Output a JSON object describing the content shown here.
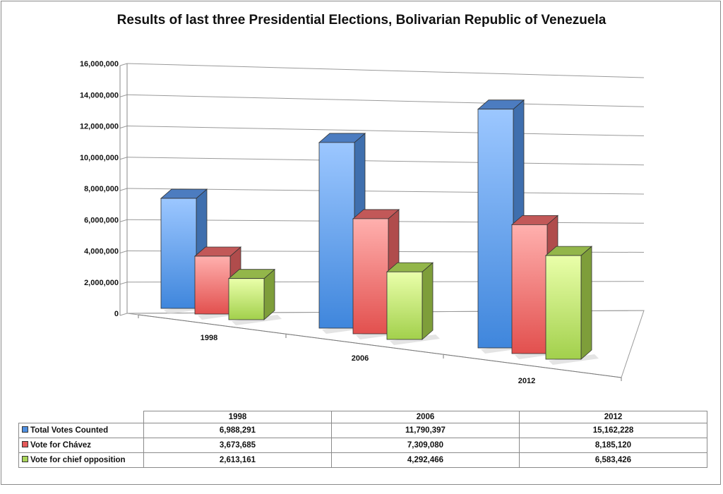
{
  "chart_data": {
    "type": "bar",
    "title": "Results of last three Presidential Elections, Bolivarian Republic of Venezuela",
    "categories": [
      "1998",
      "2006",
      "2012"
    ],
    "series": [
      {
        "name": "Total Votes Counted",
        "values": [
          6988291,
          11790397,
          15162228
        ],
        "color": "#4f8fe0"
      },
      {
        "name": "Vote for Chávez",
        "values": [
          3673685,
          7309080,
          8185120
        ],
        "color": "#e45a5a"
      },
      {
        "name": "Vote for chief opposition",
        "values": [
          2613161,
          4292466,
          6583426
        ],
        "color": "#a9d45a"
      }
    ],
    "table_values": [
      [
        "6,988,291",
        "11,790,397",
        "15,162,228"
      ],
      [
        "3,673,685",
        "7,309,080",
        "8,185,120"
      ],
      [
        "2,613,161",
        "4,292,466",
        "6,583,426"
      ]
    ],
    "ylim": [
      0,
      16000000
    ],
    "yticks": [
      "0",
      "2,000,000",
      "4,000,000",
      "6,000,000",
      "8,000,000",
      "10,000,000",
      "12,000,000",
      "14,000,000",
      "16,000,000"
    ],
    "grid": true,
    "legend": "data table below chart"
  }
}
